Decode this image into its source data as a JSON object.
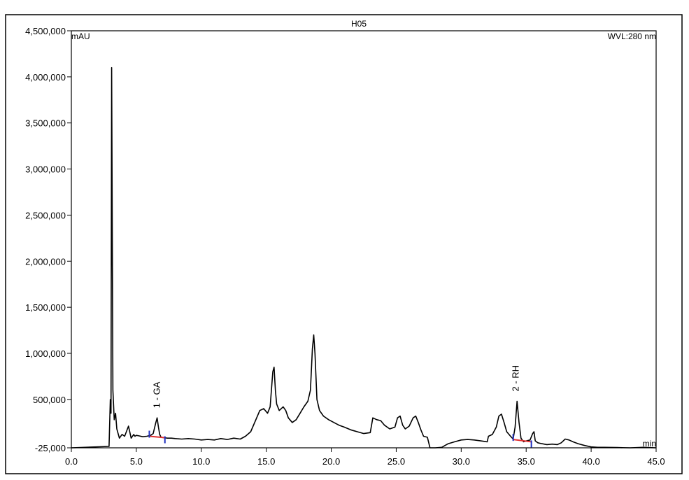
{
  "chart_data": {
    "type": "line",
    "title": "H05",
    "ylabel": "mAU",
    "xlabel": "min",
    "wavelength_label": "WVL:280 nm",
    "xlim": [
      0,
      45
    ],
    "ylim": [
      -25000,
      4500000
    ],
    "x_ticks": [
      "0.0",
      "5.0",
      "10.0",
      "15.0",
      "20.0",
      "25.0",
      "30.0",
      "35.0",
      "40.0",
      "45.0"
    ],
    "x_tick_values": [
      0,
      5,
      10,
      15,
      20,
      25,
      30,
      35,
      40,
      45
    ],
    "y_ticks": [
      "4,500,000",
      "4,000,000",
      "3,500,000",
      "3,000,000",
      "2,500,000",
      "2,000,000",
      "1,500,000",
      "1,000,000",
      "500,000",
      "-25,000"
    ],
    "y_tick_values": [
      4500000,
      4000000,
      3500000,
      3000000,
      2500000,
      2000000,
      1500000,
      1000000,
      500000,
      -25000
    ],
    "grid": false,
    "line_color": "#000000",
    "baseline_color": "#e03030",
    "marker_color": "#2030c0",
    "series": [
      {
        "x": [
          0,
          2.9,
          3.0,
          3.05,
          3.1,
          3.2,
          3.3,
          3.4,
          3.5,
          3.7,
          3.9,
          4.1,
          4.4,
          4.6,
          4.8,
          4.9,
          5.0,
          5.2,
          5.5,
          5.8,
          6.1,
          6.3,
          6.5,
          6.6,
          6.7,
          6.8,
          6.9,
          7.1,
          7.4,
          7.7,
          8.0,
          8.5,
          9.0,
          9.5,
          10.0,
          10.5,
          11.0,
          11.5,
          12.0,
          12.5,
          13.0,
          13.4,
          13.8,
          14.2,
          14.5,
          14.8,
          15.1,
          15.3,
          15.5,
          15.6,
          15.7,
          15.8,
          16.0,
          16.3,
          16.5,
          16.7,
          17.0,
          17.3,
          17.6,
          17.9,
          18.2,
          18.4,
          18.55,
          18.65,
          18.75,
          18.9,
          19.1,
          19.4,
          19.8,
          20.2,
          20.6,
          21.0,
          21.5,
          22.0,
          22.5,
          23.0,
          23.2,
          23.5,
          23.8,
          24.1,
          24.5,
          24.9,
          25.1,
          25.3,
          25.5,
          25.7,
          26.0,
          26.3,
          26.5,
          26.7,
          26.9,
          27.1,
          27.4,
          27.6,
          28.0,
          28.5,
          29.0,
          29.5,
          30.0,
          30.5,
          31.0,
          31.5,
          32.0,
          32.1,
          32.4,
          32.7,
          32.9,
          33.1,
          33.3,
          33.5,
          33.8,
          34.0,
          34.15,
          34.3,
          34.45,
          34.6,
          34.8,
          35.0,
          35.3,
          35.5,
          35.6,
          35.7,
          35.9,
          36.2,
          36.6,
          37.0,
          37.4,
          37.7,
          38.0,
          38.3,
          38.6,
          39.0,
          39.5,
          40.0,
          40.5,
          41.0,
          42.0,
          43.0,
          44.0,
          45.0
        ],
        "y": [
          -25000,
          -10000,
          500000,
          350000,
          4100000,
          600000,
          280000,
          350000,
          180000,
          80000,
          120000,
          100000,
          210000,
          80000,
          120000,
          100000,
          110000,
          105000,
          95000,
          100000,
          110000,
          130000,
          250000,
          300000,
          200000,
          120000,
          90000,
          85000,
          80000,
          80000,
          75000,
          70000,
          75000,
          70000,
          60000,
          65000,
          60000,
          75000,
          65000,
          80000,
          70000,
          100000,
          150000,
          280000,
          380000,
          400000,
          350000,
          420000,
          800000,
          850000,
          600000,
          450000,
          380000,
          420000,
          380000,
          300000,
          250000,
          280000,
          350000,
          420000,
          480000,
          600000,
          1050000,
          1200000,
          1000000,
          500000,
          380000,
          320000,
          280000,
          250000,
          220000,
          200000,
          170000,
          150000,
          130000,
          140000,
          300000,
          280000,
          270000,
          220000,
          180000,
          200000,
          300000,
          320000,
          220000,
          180000,
          210000,
          300000,
          320000,
          250000,
          170000,
          100000,
          90000,
          -25000,
          -25000,
          -20000,
          20000,
          40000,
          60000,
          65000,
          60000,
          50000,
          40000,
          100000,
          120000,
          200000,
          320000,
          340000,
          250000,
          150000,
          100000,
          70000,
          200000,
          480000,
          250000,
          80000,
          40000,
          50000,
          60000,
          130000,
          150000,
          50000,
          30000,
          20000,
          10000,
          15000,
          10000,
          30000,
          70000,
          60000,
          40000,
          20000,
          0,
          -15000,
          -20000,
          -20000,
          -22000,
          -25000,
          -20000,
          -25000
        ]
      }
    ],
    "annotations": [
      {
        "text": "1 - GA",
        "x": 6.6,
        "y": 300000
      },
      {
        "text": "2 - RH",
        "x": 34.2,
        "y": 480000
      }
    ],
    "integration_baselines": [
      {
        "x_start": 6.0,
        "x_end": 7.2,
        "y_start": 100000,
        "y_end": 85000
      },
      {
        "x_start": 34.0,
        "x_end": 35.4,
        "y_start": 65000,
        "y_end": 40000
      }
    ]
  }
}
